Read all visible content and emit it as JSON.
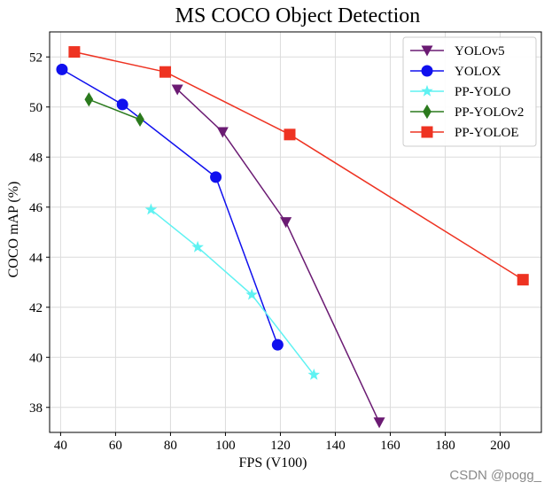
{
  "watermark": "CSDN @pogg_",
  "chart_data": {
    "type": "line",
    "title": "MS COCO Object Detection",
    "xlabel": "FPS (V100)",
    "ylabel": "COCO mAP (%)",
    "xlim": [
      36,
      215
    ],
    "ylim": [
      37.0,
      53.0
    ],
    "xticks": [
      40,
      60,
      80,
      100,
      120,
      140,
      160,
      180,
      200
    ],
    "yticks": [
      38,
      40,
      42,
      44,
      46,
      48,
      50,
      52
    ],
    "grid": true,
    "legend_position": "top-right",
    "series": [
      {
        "name": "YOLOv5",
        "color": "#6b1b73",
        "marker": "triangle-down",
        "x": [
          82.5,
          99.0,
          122.0,
          156.0
        ],
        "y": [
          50.7,
          49.0,
          45.4,
          37.4
        ]
      },
      {
        "name": "YOLOX",
        "color": "#1010ee",
        "marker": "circle",
        "x": [
          40.5,
          62.5,
          96.5,
          119.0
        ],
        "y": [
          51.5,
          50.1,
          47.2,
          40.5
        ]
      },
      {
        "name": "PP-YOLO",
        "color": "#5ff2f2",
        "marker": "star",
        "x": [
          72.9,
          89.9,
          109.6,
          132.2
        ],
        "y": [
          45.9,
          44.4,
          42.5,
          39.3
        ]
      },
      {
        "name": "PP-YOLOv2",
        "color": "#2b7a1d",
        "marker": "diamond",
        "x": [
          50.3,
          68.9
        ],
        "y": [
          50.3,
          49.5
        ]
      },
      {
        "name": "PP-YOLOE",
        "color": "#ee3322",
        "marker": "square",
        "x": [
          45.0,
          78.1,
          123.4,
          208.3
        ],
        "y": [
          52.2,
          51.4,
          48.9,
          43.1
        ]
      }
    ]
  }
}
